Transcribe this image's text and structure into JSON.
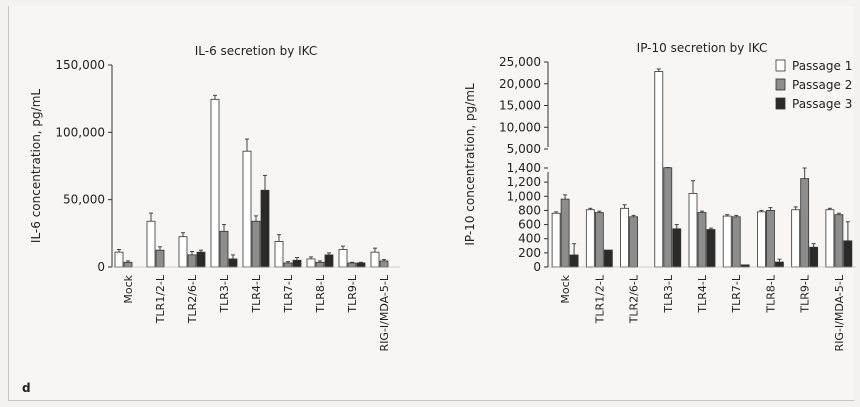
{
  "panel_label": "d",
  "legend": {
    "items": [
      {
        "name": "Passage 1",
        "color": "#ffffff"
      },
      {
        "name": "Passage 2",
        "color": "#8d8d8d"
      },
      {
        "name": "Passage 3",
        "color": "#2a2a2a"
      }
    ]
  },
  "chart_data": [
    {
      "type": "bar",
      "title": "IL-6 secretion by IKC",
      "ylabel": "IL-6 concentration, pg/mL",
      "xlabel": "",
      "ylim": [
        0,
        150000
      ],
      "yticks": [
        0,
        50000,
        100000,
        150000
      ],
      "ytick_labels": [
        "0",
        "50,000",
        "100,000",
        "150,000"
      ],
      "categories": [
        "Mock",
        "TLR1/2-L",
        "TLR2/6-L",
        "TLR3-L",
        "TLR4-L",
        "TLR7-L",
        "TLR8-L",
        "TLR9-L",
        "RIG-I/MDA-5-L"
      ],
      "series": [
        {
          "name": "Passage 1",
          "values": [
            11000,
            34000,
            22500,
            124500,
            86000,
            19000,
            6000,
            13000,
            11000
          ],
          "errors": [
            2000,
            6000,
            3000,
            3000,
            9000,
            5000,
            1500,
            2500,
            3000
          ]
        },
        {
          "name": "Passage 2",
          "values": [
            3500,
            12500,
            9000,
            26500,
            34000,
            3000,
            3500,
            3000,
            4500
          ],
          "errors": [
            1000,
            2500,
            2500,
            5000,
            4000,
            1000,
            1000,
            500,
            1000
          ]
        },
        {
          "name": "Passage 3",
          "values": [
            null,
            null,
            11000,
            6000,
            57000,
            5000,
            9000,
            3000,
            null
          ],
          "errors": [
            0,
            0,
            1500,
            3000,
            11000,
            2000,
            1500,
            500,
            0
          ]
        }
      ]
    },
    {
      "type": "bar",
      "title": "IP-10 secretion by IKC",
      "ylabel": "IP-10 concentration, pg/mL",
      "xlabel": "",
      "ylim": [
        0,
        25000
      ],
      "axis_break": [
        1400,
        5000
      ],
      "yticks": [
        0,
        200,
        400,
        600,
        800,
        1000,
        1200,
        1400,
        5000,
        10000,
        15000,
        20000,
        25000
      ],
      "ytick_labels": [
        "0",
        "200",
        "400",
        "600",
        "800",
        "1,000",
        "1,200",
        "1,400",
        "5,000",
        "10,000",
        "15,000",
        "20,000",
        "25,000"
      ],
      "categories": [
        "Mock",
        "TLR1/2-L",
        "TLR2/6-L",
        "TLR3-L",
        "TLR4-L",
        "TLR7-L",
        "TLR8-L",
        "TLR9-L",
        "RIG-I/MDA-5-L"
      ],
      "series": [
        {
          "name": "Passage 1",
          "values": [
            760,
            810,
            830,
            22800,
            1040,
            720,
            780,
            810,
            810
          ],
          "errors": [
            20,
            20,
            50,
            600,
            180,
            20,
            20,
            40,
            20
          ]
        },
        {
          "name": "Passage 2",
          "values": [
            960,
            770,
            710,
            1450,
            770,
            710,
            800,
            1250,
            740
          ],
          "errors": [
            60,
            20,
            20,
            30,
            20,
            20,
            40,
            150,
            20
          ]
        },
        {
          "name": "Passage 3",
          "values": [
            170,
            240,
            null,
            540,
            530,
            30,
            70,
            280,
            370
          ],
          "errors": [
            160,
            0,
            0,
            60,
            20,
            0,
            40,
            50,
            270
          ]
        }
      ]
    }
  ]
}
